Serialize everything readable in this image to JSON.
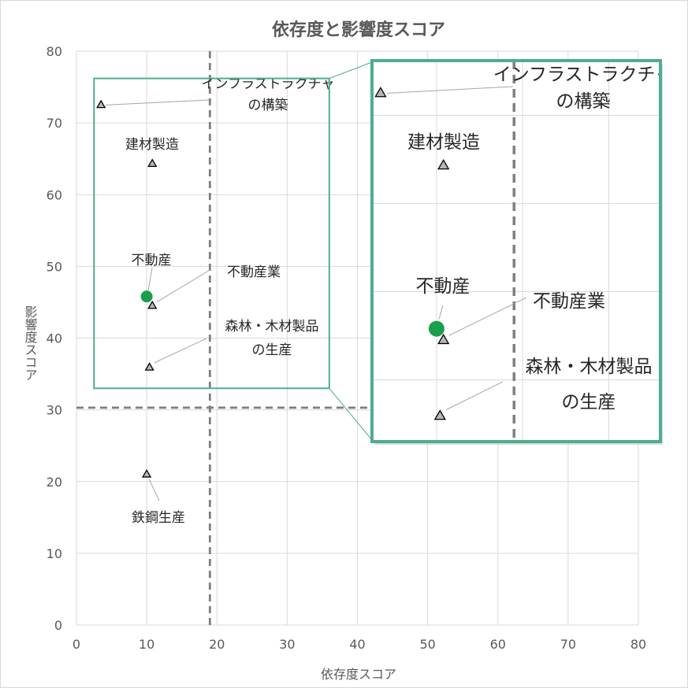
{
  "chart_data": {
    "type": "scatter",
    "title": "依存度と影響度スコア",
    "xlabel": "依存度スコア",
    "ylabel": "影響度スコア",
    "xlim": [
      0,
      80
    ],
    "ylim": [
      0,
      80
    ],
    "xticks": [
      "0",
      "10",
      "20",
      "30",
      "40",
      "50",
      "60",
      "70",
      "80"
    ],
    "yticks": [
      "0",
      "10",
      "20",
      "30",
      "40",
      "50",
      "60",
      "70",
      "80"
    ],
    "grid": true,
    "reference_lines": {
      "x": 19,
      "y": 30.3
    },
    "highlight_color": "#1aa04a",
    "frame_color": "#4daf8a",
    "points": [
      {
        "label_lines": [
          "インフラストラクチャ",
          "の構築"
        ],
        "x": 3.5,
        "y": 72.5
      },
      {
        "label_lines": [
          "建材製造"
        ],
        "x": 10.8,
        "y": 64.3
      },
      {
        "label_lines": [
          "不動産業"
        ],
        "x": 10.8,
        "y": 44.5
      },
      {
        "label_lines": [
          "森林・木材製品",
          "の生産"
        ],
        "x": 10.4,
        "y": 35.9
      },
      {
        "label_lines": [
          "鉄鋼生産"
        ],
        "x": 10.0,
        "y": 21.0
      }
    ],
    "highlight": {
      "label_lines": [
        "不動産"
      ],
      "x": 10.0,
      "y": 45.8
    },
    "zoom_region": {
      "xlim": [
        2.5,
        36
      ],
      "ylim": [
        33,
        76.2
      ]
    }
  }
}
